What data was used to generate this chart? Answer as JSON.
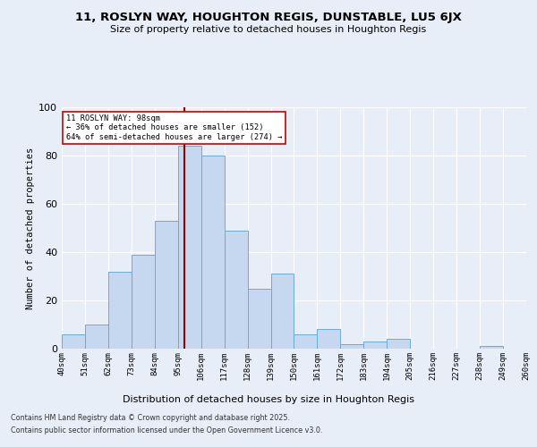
{
  "title1": "11, ROSLYN WAY, HOUGHTON REGIS, DUNSTABLE, LU5 6JX",
  "title2": "Size of property relative to detached houses in Houghton Regis",
  "xlabel": "Distribution of detached houses by size in Houghton Regis",
  "ylabel": "Number of detached properties",
  "bin_labels": [
    "40sqm",
    "51sqm",
    "62sqm",
    "73sqm",
    "84sqm",
    "95sqm",
    "106sqm",
    "117sqm",
    "128sqm",
    "139sqm",
    "150sqm",
    "161sqm",
    "172sqm",
    "183sqm",
    "194sqm",
    "205sqm",
    "216sqm",
    "227sqm",
    "238sqm",
    "249sqm",
    "260sqm"
  ],
  "heights": [
    6,
    10,
    32,
    39,
    53,
    84,
    80,
    49,
    25,
    31,
    6,
    8,
    2,
    3,
    4,
    0,
    0,
    0,
    1,
    0
  ],
  "bar_color": "#c5d8f0",
  "bar_edge_color": "#6aaad4",
  "vline_color": "#990000",
  "annotation_text": "11 ROSLYN WAY: 98sqm\n← 36% of detached houses are smaller (152)\n64% of semi-detached houses are larger (274) →",
  "annotation_box_color": "#ffffff",
  "annotation_box_edge": "#cc0000",
  "ylim": [
    0,
    100
  ],
  "yticks": [
    0,
    20,
    40,
    60,
    80,
    100
  ],
  "footer1": "Contains HM Land Registry data © Crown copyright and database right 2025.",
  "footer2": "Contains public sector information licensed under the Open Government Licence v3.0.",
  "bg_color": "#e8eef8",
  "plot_bg_color": "#e8eef8",
  "grid_color": "#ffffff"
}
